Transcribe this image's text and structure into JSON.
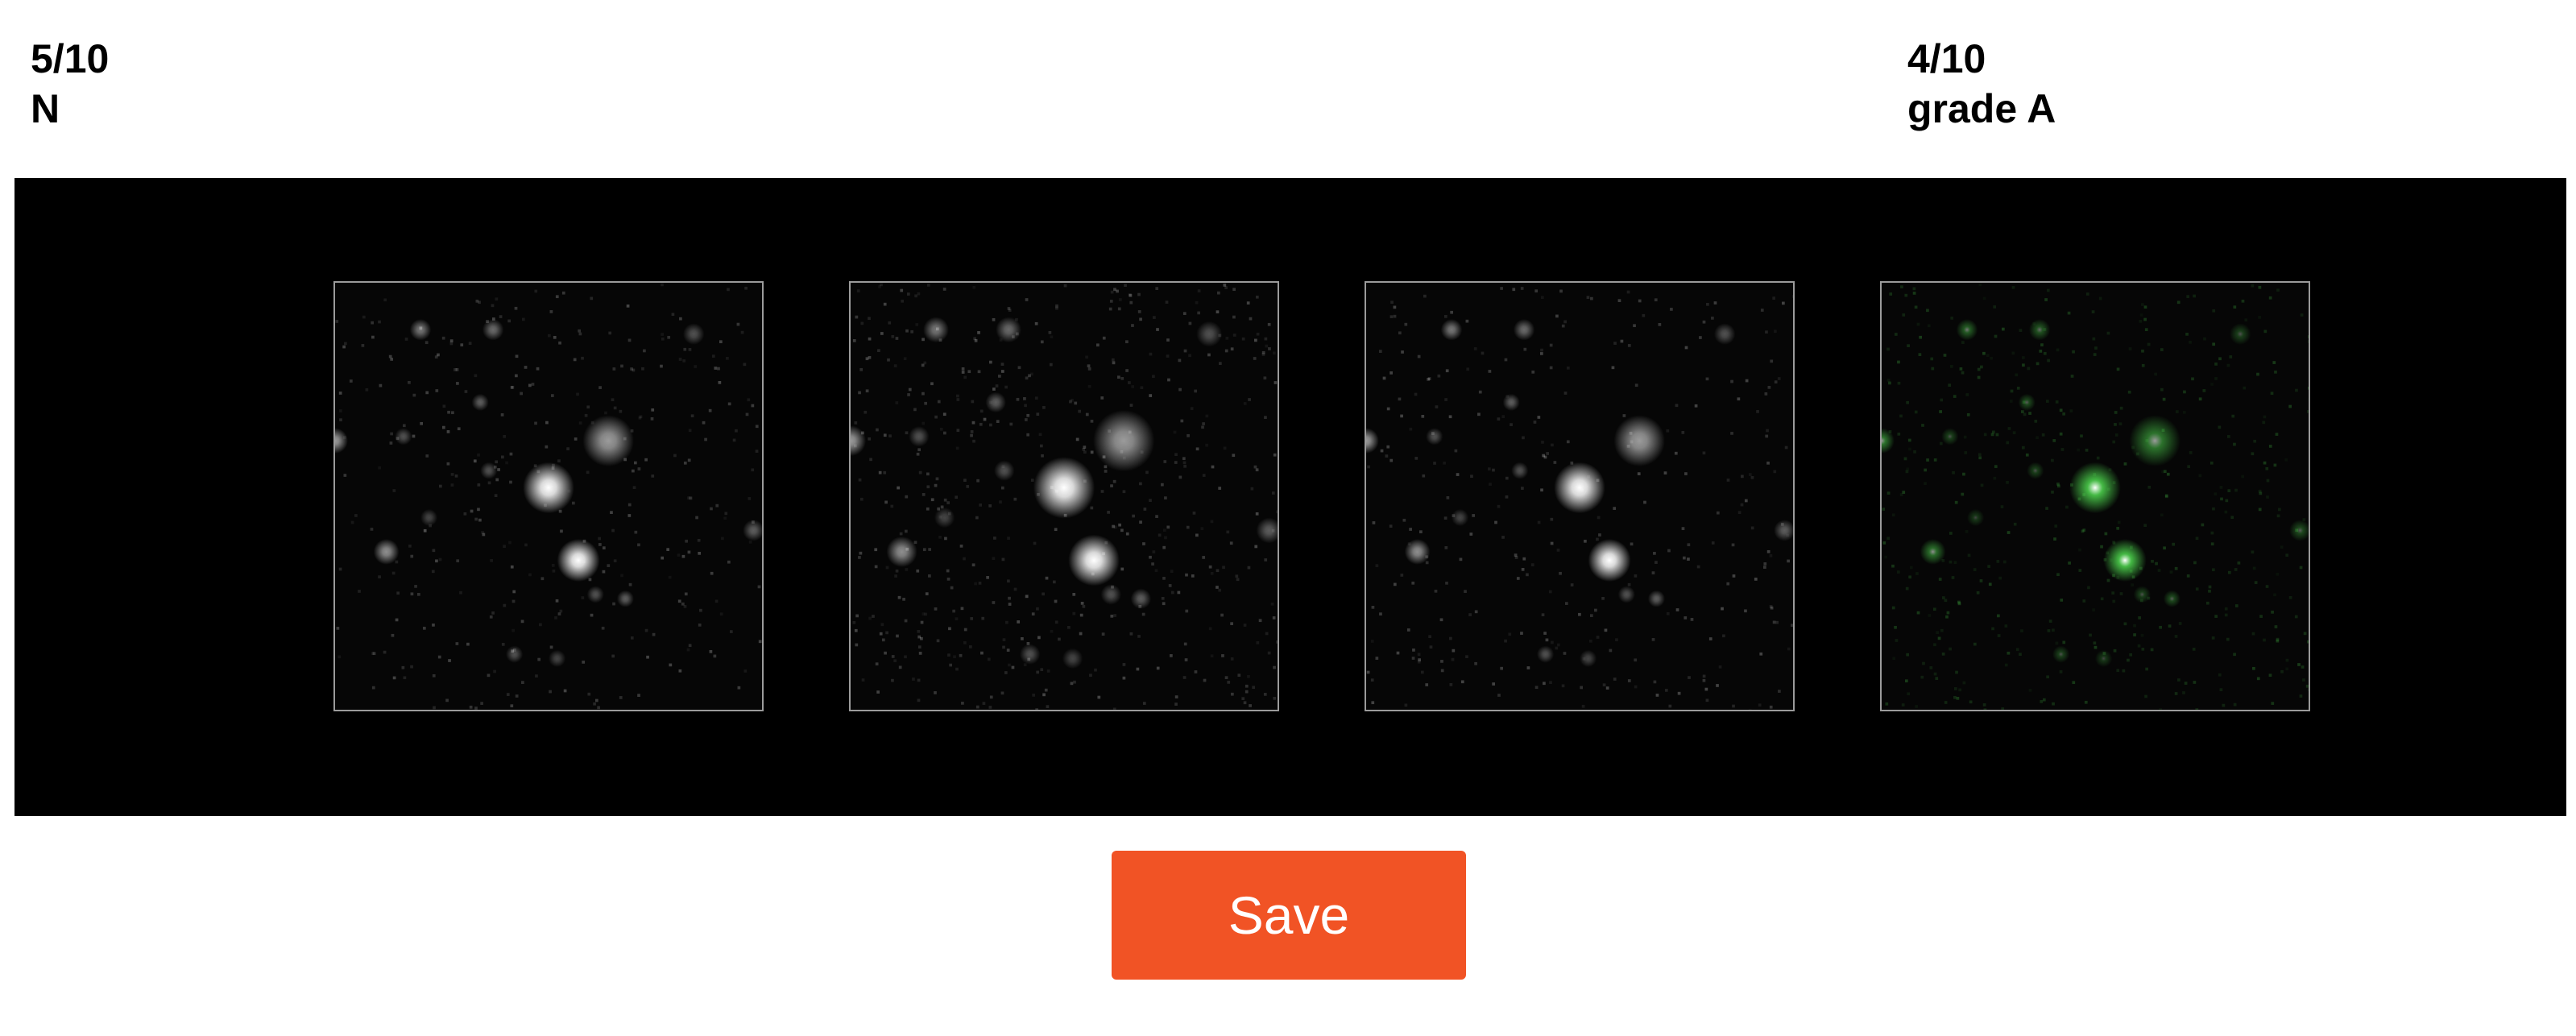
{
  "left_label": {
    "count": "5/10",
    "value": "N"
  },
  "right_label": {
    "count": "4/10",
    "value": "grade A"
  },
  "cutouts": [
    {
      "name": "cutout-panel-1",
      "tint": "#ffffff",
      "noise": 0.55
    },
    {
      "name": "cutout-panel-2",
      "tint": "#ffffff",
      "noise": 0.85
    },
    {
      "name": "cutout-panel-3",
      "tint": "#ffffff",
      "noise": 0.5
    },
    {
      "name": "cutout-panel-4",
      "tint": "#4fd84f",
      "noise": 0.75
    }
  ],
  "save_button": {
    "label": "Save",
    "color": "#f15325"
  }
}
